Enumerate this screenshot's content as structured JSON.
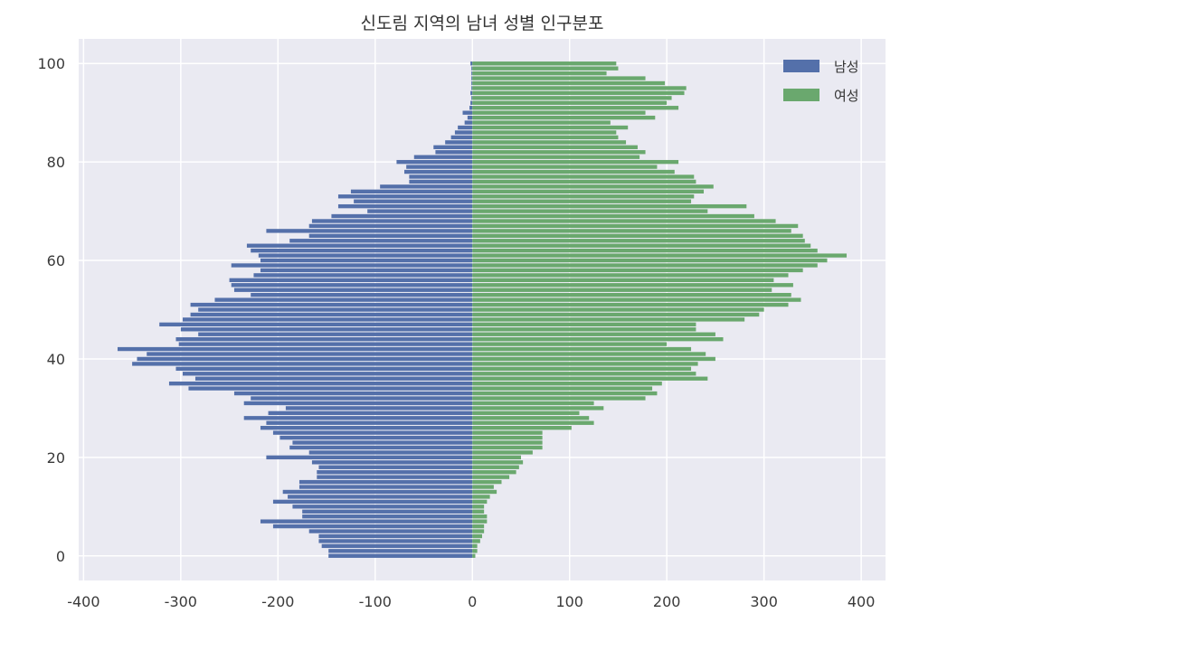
{
  "chart_data": {
    "type": "bar",
    "orientation": "horizontal",
    "title": "신도림 지역의 남녀 성별 인구분포",
    "xlabel": "",
    "ylabel": "",
    "xlim": [
      -405,
      425
    ],
    "ylim": [
      -5,
      105
    ],
    "xticks": [
      -400,
      -300,
      -200,
      -100,
      0,
      100,
      200,
      300,
      400
    ],
    "yticks": [
      0,
      20,
      40,
      60,
      80,
      100
    ],
    "grid": true,
    "legend_position": "top-right",
    "colors": {
      "background": "#eaeaf2",
      "grid": "#ffffff",
      "male": "#5470aa",
      "female": "#6aa86e"
    },
    "ages": [
      0,
      1,
      2,
      3,
      4,
      5,
      6,
      7,
      8,
      9,
      10,
      11,
      12,
      13,
      14,
      15,
      16,
      17,
      18,
      19,
      20,
      21,
      22,
      23,
      24,
      25,
      26,
      27,
      28,
      29,
      30,
      31,
      32,
      33,
      34,
      35,
      36,
      37,
      38,
      39,
      40,
      41,
      42,
      43,
      44,
      45,
      46,
      47,
      48,
      49,
      50,
      51,
      52,
      53,
      54,
      55,
      56,
      57,
      58,
      59,
      60,
      61,
      62,
      63,
      64,
      65,
      66,
      67,
      68,
      69,
      70,
      71,
      72,
      73,
      74,
      75,
      76,
      77,
      78,
      79,
      80,
      81,
      82,
      83,
      84,
      85,
      86,
      87,
      88,
      89,
      90,
      91,
      92,
      93,
      94,
      95,
      96,
      97,
      98,
      99,
      100
    ],
    "series": [
      {
        "name": "남성",
        "values": [
          -148,
          -148,
          -155,
          -158,
          -158,
          -168,
          -205,
          -218,
          -175,
          -175,
          -185,
          -205,
          -190,
          -195,
          -178,
          -178,
          -160,
          -160,
          -158,
          -165,
          -212,
          -168,
          -188,
          -185,
          -198,
          -205,
          -218,
          -212,
          -235,
          -210,
          -192,
          -235,
          -228,
          -245,
          -292,
          -312,
          -285,
          -298,
          -305,
          -350,
          -345,
          -335,
          -365,
          -302,
          -305,
          -282,
          -300,
          -322,
          -298,
          -290,
          -282,
          -290,
          -265,
          -228,
          -245,
          -248,
          -250,
          -225,
          -218,
          -248,
          -218,
          -220,
          -228,
          -232,
          -188,
          -168,
          -212,
          -168,
          -165,
          -145,
          -108,
          -138,
          -122,
          -138,
          -125,
          -95,
          -65,
          -65,
          -70,
          -68,
          -78,
          -60,
          -38,
          -40,
          -28,
          -22,
          -18,
          -15,
          -8,
          -5,
          -10,
          -3,
          -2,
          -1,
          -2,
          -1,
          -1,
          -1,
          -1,
          -1,
          -2
        ]
      },
      {
        "name": "여성",
        "values": [
          3,
          5,
          5,
          8,
          10,
          12,
          12,
          15,
          15,
          12,
          12,
          15,
          18,
          25,
          22,
          30,
          38,
          45,
          48,
          52,
          50,
          62,
          72,
          72,
          72,
          72,
          102,
          125,
          120,
          110,
          135,
          125,
          178,
          190,
          185,
          195,
          242,
          230,
          225,
          232,
          250,
          240,
          225,
          200,
          258,
          250,
          230,
          230,
          280,
          295,
          300,
          325,
          338,
          328,
          308,
          330,
          310,
          325,
          340,
          355,
          365,
          385,
          355,
          348,
          342,
          340,
          328,
          335,
          312,
          290,
          242,
          282,
          225,
          228,
          238,
          248,
          230,
          228,
          208,
          190,
          212,
          172,
          178,
          170,
          158,
          150,
          148,
          160,
          142,
          188,
          178,
          212,
          200,
          205,
          218,
          220,
          198,
          178,
          138,
          150,
          148
        ]
      }
    ]
  }
}
